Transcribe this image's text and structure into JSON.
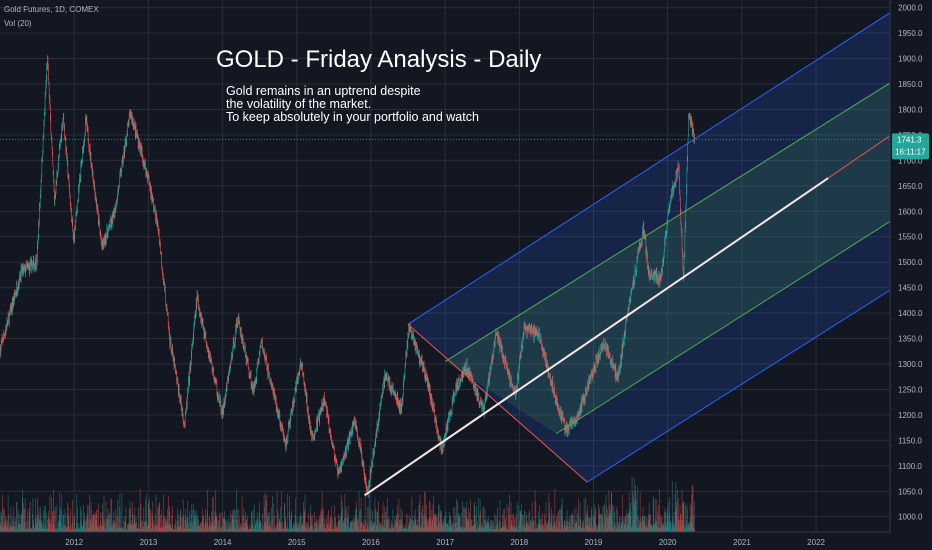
{
  "header": {
    "symbol_line": "Gold Futures, 1D, COMEX",
    "volume_line": "Vol (20)"
  },
  "annotation": {
    "title": "GOLD - Friday Analysis - Daily",
    "lines": [
      "Gold remains in an uptrend despite",
      "the volatility of the market.",
      "To keep absolutely in your portfolio and watch"
    ]
  },
  "price_tag": {
    "price": "1741.3",
    "countdown": "16:11:17",
    "color": "#26a69a"
  },
  "colors": {
    "background": "#131722",
    "grid": "#2a2e39",
    "up": "#26a69a",
    "down": "#ef5350",
    "channel_outer": "#2962ff",
    "channel_inner": "#4caf50",
    "median": "#f5e6e6",
    "drop_line": "#ef5350"
  },
  "chart_data": {
    "type": "candlestick",
    "title": "",
    "x_axis": {
      "type": "date",
      "range": [
        "2011-01-01",
        "2022-12-31"
      ],
      "tick_labels": [
        "2012",
        "2013",
        "2014",
        "2015",
        "2016",
        "2017",
        "2018",
        "2019",
        "2020",
        "2021",
        "2022"
      ]
    },
    "y_axis": {
      "position": "right",
      "range": [
        970,
        2015
      ],
      "tick_labels": [
        "1000.0",
        "1050.0",
        "1100.0",
        "1150.0",
        "1200.0",
        "1250.0",
        "1300.0",
        "1350.0",
        "1400.0",
        "1450.0",
        "1500.0",
        "1550.0",
        "1600.0",
        "1650.0",
        "1700.0",
        "1750.0",
        "1800.0",
        "1850.0",
        "1900.0",
        "1950.0",
        "2000.0"
      ]
    },
    "grid": true,
    "last_price": 1741.3,
    "price_path": [
      [
        "2011-01-03",
        1330
      ],
      [
        "2011-04-15",
        1480
      ],
      [
        "2011-07-01",
        1500
      ],
      [
        "2011-08-22",
        1900
      ],
      [
        "2011-09-26",
        1620
      ],
      [
        "2011-11-08",
        1790
      ],
      [
        "2011-12-29",
        1540
      ],
      [
        "2012-02-28",
        1780
      ],
      [
        "2012-05-16",
        1530
      ],
      [
        "2012-07-15",
        1590
      ],
      [
        "2012-10-04",
        1795
      ],
      [
        "2012-12-31",
        1665
      ],
      [
        "2013-02-20",
        1560
      ],
      [
        "2013-04-15",
        1350
      ],
      [
        "2013-06-28",
        1180
      ],
      [
        "2013-08-28",
        1430
      ],
      [
        "2013-12-31",
        1200
      ],
      [
        "2014-03-17",
        1390
      ],
      [
        "2014-06-02",
        1245
      ],
      [
        "2014-07-10",
        1345
      ],
      [
        "2014-11-07",
        1140
      ],
      [
        "2015-01-22",
        1305
      ],
      [
        "2015-03-17",
        1150
      ],
      [
        "2015-05-18",
        1230
      ],
      [
        "2015-07-24",
        1080
      ],
      [
        "2015-10-14",
        1190
      ],
      [
        "2015-12-17",
        1050
      ],
      [
        "2016-03-11",
        1280
      ],
      [
        "2016-05-30",
        1210
      ],
      [
        "2016-07-06",
        1375
      ],
      [
        "2016-10-04",
        1270
      ],
      [
        "2016-12-15",
        1130
      ],
      [
        "2017-02-27",
        1260
      ],
      [
        "2017-04-17",
        1295
      ],
      [
        "2017-07-10",
        1205
      ],
      [
        "2017-09-08",
        1360
      ],
      [
        "2017-12-12",
        1240
      ],
      [
        "2018-01-25",
        1370
      ],
      [
        "2018-04-11",
        1355
      ],
      [
        "2018-05-21",
        1290
      ],
      [
        "2018-08-16",
        1170
      ],
      [
        "2018-10-10",
        1190
      ],
      [
        "2019-02-20",
        1345
      ],
      [
        "2019-05-02",
        1270
      ],
      [
        "2019-06-25",
        1420
      ],
      [
        "2019-09-04",
        1565
      ],
      [
        "2019-10-01",
        1480
      ],
      [
        "2019-11-29",
        1465
      ],
      [
        "2020-01-08",
        1610
      ],
      [
        "2020-02-24",
        1690
      ],
      [
        "2020-03-19",
        1460
      ],
      [
        "2020-04-14",
        1790
      ],
      [
        "2020-05-14",
        1741
      ]
    ],
    "volume": {
      "label": "Vol (20)",
      "relative_scale": [
        0.02,
        0.45
      ]
    },
    "overlays": {
      "regression_channel": {
        "median_line": [
          [
            "2015-12-01",
            1042
          ],
          [
            "2022-03-01",
            1665
          ]
        ],
        "upper_channel_line": [
          [
            "2016-07-01",
            1378
          ],
          [
            "2022-12-31",
            1990
          ]
        ],
        "upper_inner_line": [
          [
            "2017-01-01",
            1305
          ],
          [
            "2022-12-31",
            1852
          ]
        ],
        "lower_inner_line": [
          [
            "2018-07-01",
            1163
          ],
          [
            "2022-12-31",
            1580
          ]
        ],
        "lower_channel_line": [
          [
            "2018-12-01",
            1068
          ],
          [
            "2022-12-31",
            1445
          ]
        ],
        "descending_trendline": [
          [
            "2016-07-01",
            1378
          ],
          [
            "2018-12-01",
            1068
          ]
        ]
      }
    }
  }
}
